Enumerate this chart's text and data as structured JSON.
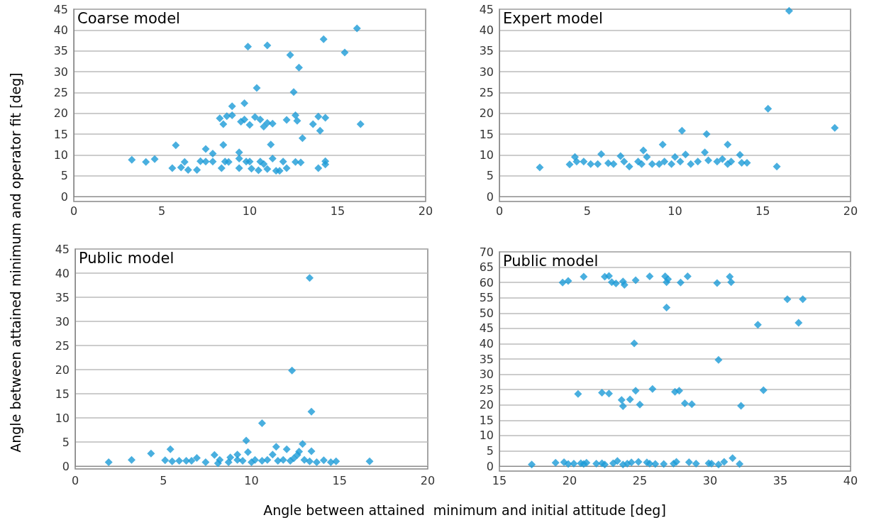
{
  "chart_data": [
    {
      "type": "scatter",
      "ylabel": "Angle between attained minimum and operator fit [deg]",
      "annotations": [
        "Coarse model"
      ],
      "color": "#1b9bd7",
      "marker": "diamond",
      "grid": "y",
      "xlim": [
        0,
        20
      ],
      "xticks": [
        0,
        5,
        10,
        15,
        20
      ],
      "ylim": [
        0,
        45
      ],
      "yticks": [
        0,
        5,
        10,
        15,
        20,
        25,
        30,
        35,
        40,
        45
      ],
      "x": [
        16.1,
        14.2,
        9.9,
        11.0,
        12.3,
        15.4,
        12.8,
        10.4,
        12.5,
        9.0,
        9.7,
        8.3,
        8.7,
        9.0,
        8.5,
        9.5,
        9.7,
        10.0,
        10.3,
        10.6,
        10.8,
        11.0,
        11.3,
        12.1,
        12.6,
        12.7,
        13.6,
        13.9,
        14.3,
        14.0,
        16.3,
        13.0,
        5.8,
        8.5,
        11.2,
        7.5,
        7.9,
        9.4,
        3.3,
        4.1,
        4.6,
        5.6,
        6.1,
        6.3,
        6.5,
        7.0,
        7.2,
        7.5,
        7.9,
        8.4,
        8.6,
        8.8,
        9.4,
        9.4,
        9.8,
        10.1,
        10.0,
        10.5,
        10.6,
        10.8,
        11.0,
        11.3,
        11.5,
        11.7,
        11.9,
        12.1,
        12.6,
        12.9,
        13.9,
        14.3,
        14.3
      ],
      "values": [
        40.4,
        37.8,
        36.0,
        36.3,
        34.0,
        34.6,
        31.0,
        26.1,
        25.1,
        21.7,
        22.4,
        18.8,
        19.3,
        19.5,
        17.4,
        18.0,
        18.5,
        17.2,
        19.1,
        18.5,
        16.8,
        17.7,
        17.5,
        18.4,
        19.5,
        18.2,
        17.4,
        19.2,
        18.9,
        15.8,
        17.4,
        14.0,
        12.3,
        12.4,
        12.5,
        11.4,
        10.3,
        10.6,
        8.8,
        8.3,
        9.0,
        6.8,
        7.0,
        8.3,
        6.4,
        6.4,
        8.5,
        8.4,
        8.4,
        6.8,
        8.4,
        8.3,
        6.8,
        9.1,
        8.4,
        6.7,
        8.4,
        6.3,
        8.4,
        7.8,
        6.6,
        9.1,
        6.2,
        6.2,
        8.4,
        6.8,
        8.3,
        8.2,
        6.8,
        8.5,
        7.7
      ]
    },
    {
      "type": "scatter",
      "annotations": [
        "Expert model"
      ],
      "color": "#1b9bd7",
      "marker": "diamond",
      "grid": "y",
      "xlim": [
        0,
        20
      ],
      "xticks": [
        0,
        5,
        10,
        15,
        20
      ],
      "ylim": [
        0,
        45
      ],
      "yticks": [
        0,
        5,
        10,
        15,
        20,
        25,
        30,
        35,
        40,
        45
      ],
      "x": [
        16.5,
        15.3,
        19.1,
        10.4,
        11.8,
        9.3,
        13.0,
        8.2,
        11.7,
        5.8,
        6.9,
        10.6,
        13.7,
        4.3,
        4.4,
        4.8,
        5.2,
        5.6,
        6.2,
        6.5,
        7.1,
        7.4,
        7.9,
        8.1,
        8.4,
        8.7,
        9.1,
        9.4,
        9.8,
        10.0,
        10.3,
        10.9,
        11.3,
        11.9,
        12.4,
        12.7,
        13.0,
        13.2,
        13.8,
        14.1,
        2.3,
        4.0,
        15.8
      ],
      "values": [
        44.6,
        21.1,
        16.5,
        15.8,
        15.0,
        12.5,
        12.5,
        11.1,
        10.6,
        10.2,
        9.7,
        10.1,
        10.0,
        9.5,
        8.4,
        8.4,
        7.8,
        7.8,
        8.0,
        7.8,
        8.4,
        7.2,
        8.4,
        7.8,
        9.5,
        7.8,
        7.8,
        8.4,
        7.8,
        9.5,
        8.4,
        7.8,
        8.4,
        8.7,
        8.4,
        9.0,
        7.8,
        8.4,
        8.1,
        8.1,
        7.0,
        7.7,
        7.2
      ]
    },
    {
      "type": "scatter",
      "xlabel": "Angle between attained  minimum and initial attitude [deg]",
      "annotations": [
        "Public model"
      ],
      "color": "#1b9bd7",
      "marker": "diamond",
      "grid": "y",
      "xlim": [
        0,
        20
      ],
      "xticks": [
        0,
        5,
        10,
        15,
        20
      ],
      "ylim": [
        0,
        45
      ],
      "yticks": [
        0,
        5,
        10,
        15,
        20,
        25,
        30,
        35,
        40,
        45
      ],
      "x": [
        13.3,
        12.3,
        13.4,
        10.6,
        9.7,
        12.9,
        5.4,
        11.4,
        12.0,
        12.7,
        13.4,
        4.3,
        3.2,
        1.9,
        16.7,
        9.8,
        9.2,
        11.2,
        7.9,
        6.9,
        5.1,
        5.5,
        5.9,
        6.3,
        6.6,
        7.3,
        7.4,
        8.1,
        8.2,
        8.7,
        8.8,
        9.2,
        9.5,
        10.0,
        10.2,
        10.6,
        10.9,
        11.5,
        11.8,
        12.2,
        12.4,
        12.6,
        13.0,
        13.3,
        13.7,
        14.1,
        14.5,
        14.8
      ],
      "values": [
        39.0,
        19.8,
        11.3,
        8.9,
        5.3,
        4.6,
        3.5,
        4.0,
        3.5,
        3.0,
        3.1,
        2.6,
        1.3,
        0.8,
        1.0,
        2.9,
        2.4,
        2.4,
        2.3,
        1.7,
        1.2,
        1.0,
        1.1,
        1.1,
        1.1,
        null,
        0.8,
        0.6,
        1.3,
        0.8,
        1.8,
        1.3,
        1.1,
        0.8,
        1.3,
        1.1,
        1.3,
        1.1,
        1.3,
        1.1,
        1.6,
        2.3,
        1.3,
        1.0,
        0.8,
        1.2,
        0.8,
        1.0
      ]
    },
    {
      "type": "scatter",
      "annotations": [
        "Public model"
      ],
      "color": "#1b9bd7",
      "marker": "diamond",
      "grid": "y",
      "xlim": [
        15,
        40
      ],
      "xticks": [
        15,
        20,
        25,
        30,
        35,
        40
      ],
      "ylim": [
        0,
        70
      ],
      "yticks": [
        0,
        5,
        10,
        15,
        20,
        25,
        30,
        35,
        40,
        45,
        50,
        55,
        60,
        65,
        70
      ],
      "x": [
        19.5,
        19.9,
        21.0,
        22.5,
        22.8,
        23.0,
        23.3,
        23.8,
        23.9,
        24.7,
        25.7,
        26.8,
        26.9,
        27.0,
        27.9,
        28.4,
        30.5,
        31.4,
        31.5,
        35.5,
        36.6,
        26.9,
        33.4,
        36.3,
        24.6,
        30.6,
        20.6,
        22.3,
        22.8,
        24.7,
        25.9,
        27.5,
        27.8,
        33.8,
        23.7,
        24.3,
        23.8,
        25.0,
        28.2,
        28.7,
        32.2,
        17.3,
        19.0,
        19.6,
        19.9,
        20.3,
        20.8,
        21.0,
        21.2,
        21.9,
        22.3,
        22.5,
        23.1,
        23.4,
        23.8,
        24.1,
        24.4,
        24.9,
        25.5,
        25.7,
        26.1,
        26.7,
        27.4,
        27.6,
        28.5,
        29.0,
        29.9,
        30.1,
        30.6,
        31.0,
        31.6,
        32.1
      ],
      "values": [
        60.0,
        60.5,
        61.9,
        61.9,
        62.1,
        60.1,
        59.7,
        60.3,
        59.2,
        60.7,
        62.0,
        62.0,
        60.1,
        61.1,
        60.0,
        62.0,
        59.8,
        61.9,
        60.1,
        54.5,
        54.5,
        51.8,
        46.2,
        46.8,
        40.1,
        34.7,
        23.6,
        24.0,
        23.7,
        24.6,
        25.2,
        24.3,
        24.6,
        24.8,
        21.6,
        21.8,
        19.6,
        20.1,
        20.5,
        20.2,
        19.7,
        0.5,
        1.1,
        1.3,
        0.7,
        0.8,
        0.9,
        0.7,
        1.1,
        0.8,
        0.9,
        0.5,
        0.9,
        1.7,
        0.5,
        0.8,
        1.2,
        1.4,
        1.2,
        0.8,
        0.7,
        0.7,
        0.8,
        1.4,
        1.3,
        0.8,
        0.9,
        0.8,
        0.5,
        1.4,
        2.6,
        0.7
      ]
    }
  ]
}
